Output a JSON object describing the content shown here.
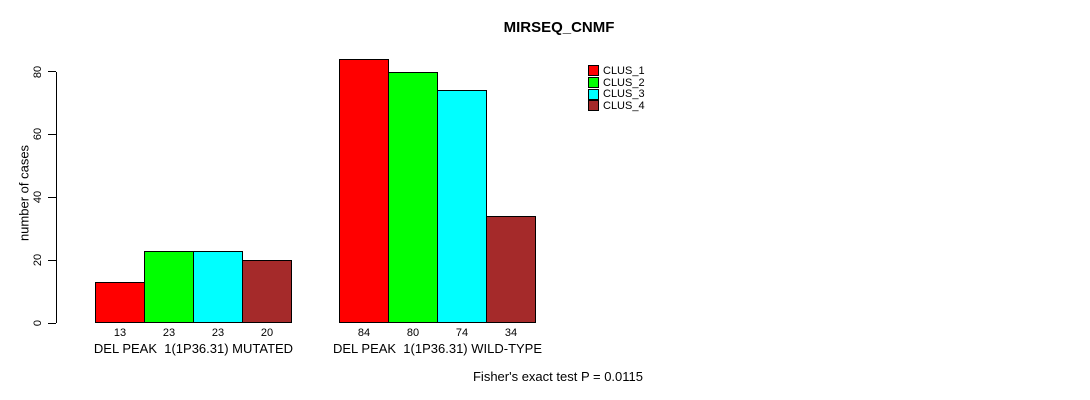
{
  "chart_data": {
    "type": "bar",
    "title": "MIRSEQ_CNMF",
    "ylabel": "number of cases",
    "xlabel": "",
    "yticks": [
      0,
      20,
      40,
      60,
      80
    ],
    "ylim": [
      0,
      80
    ],
    "grid": false,
    "legend_position": "top-right",
    "categories": [
      "DEL PEAK  1(1P36.31) MUTATED",
      "DEL PEAK  1(1P36.31) WILD-TYPE"
    ],
    "series": [
      {
        "name": "CLUS_1",
        "color": "#FF0000",
        "values": [
          13,
          84
        ]
      },
      {
        "name": "CLUS_2",
        "color": "#00FF00",
        "values": [
          23,
          80
        ]
      },
      {
        "name": "CLUS_3",
        "color": "#00FFFF",
        "values": [
          23,
          74
        ]
      },
      {
        "name": "CLUS_4",
        "color": "#A52A2A",
        "values": [
          20,
          34
        ]
      }
    ],
    "bar_value_labels": true,
    "footnote": "Fisher's exact test P = 0.0115"
  },
  "colors": {
    "background": "#FFFFFF",
    "axis": "#000000",
    "text": "#000000"
  }
}
